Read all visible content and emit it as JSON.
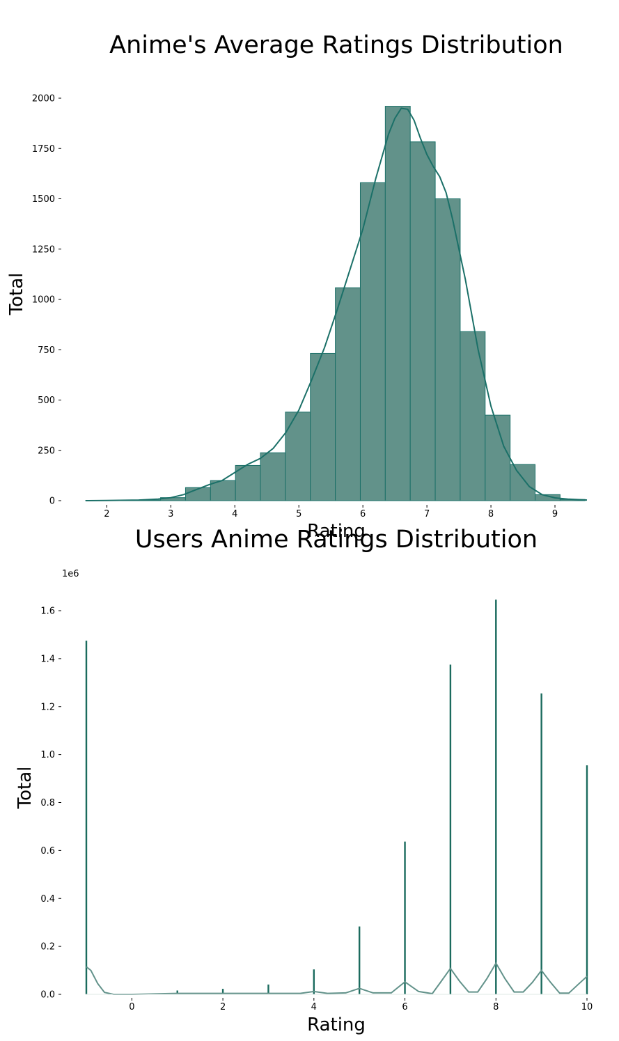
{
  "chart_data": [
    {
      "type": "bar",
      "subtype": "histogram-with-kde",
      "title": "Anime's Average Ratings Distribution",
      "xlabel": "Rating",
      "ylabel": "Total",
      "xlim": [
        1.67,
        9.5
      ],
      "ylim": [
        0,
        2050
      ],
      "xticks": [
        2,
        3,
        4,
        5,
        6,
        7,
        8,
        9
      ],
      "yticks": [
        0,
        250,
        500,
        750,
        1000,
        1250,
        1500,
        1750,
        2000
      ],
      "bar_fill": "#62928a",
      "bar_edge": "#1b7068",
      "kde_color": "#1b7068",
      "bins": [
        {
          "x0": 1.67,
          "x1": 2.06,
          "count": 1
        },
        {
          "x0": 2.06,
          "x1": 2.45,
          "count": 1
        },
        {
          "x0": 2.45,
          "x1": 2.84,
          "count": 3
        },
        {
          "x0": 2.84,
          "x1": 3.23,
          "count": 15
        },
        {
          "x0": 3.23,
          "x1": 3.62,
          "count": 65
        },
        {
          "x0": 3.62,
          "x1": 4.01,
          "count": 100
        },
        {
          "x0": 4.01,
          "x1": 4.4,
          "count": 175
        },
        {
          "x0": 4.4,
          "x1": 4.79,
          "count": 238
        },
        {
          "x0": 4.79,
          "x1": 5.18,
          "count": 440
        },
        {
          "x0": 5.18,
          "x1": 5.57,
          "count": 732
        },
        {
          "x0": 5.57,
          "x1": 5.96,
          "count": 1058
        },
        {
          "x0": 5.96,
          "x1": 6.35,
          "count": 1580
        },
        {
          "x0": 6.35,
          "x1": 6.74,
          "count": 1960
        },
        {
          "x0": 6.74,
          "x1": 7.13,
          "count": 1783
        },
        {
          "x0": 7.13,
          "x1": 7.52,
          "count": 1500
        },
        {
          "x0": 7.52,
          "x1": 7.91,
          "count": 840
        },
        {
          "x0": 7.91,
          "x1": 8.3,
          "count": 425
        },
        {
          "x0": 8.3,
          "x1": 8.69,
          "count": 180
        },
        {
          "x0": 8.69,
          "x1": 9.08,
          "count": 30
        },
        {
          "x0": 9.08,
          "x1": 9.47,
          "count": 6
        }
      ],
      "kde": {
        "x": [
          1.67,
          2.0,
          2.5,
          2.8,
          3.0,
          3.2,
          3.4,
          3.6,
          3.8,
          4.0,
          4.2,
          4.4,
          4.6,
          4.8,
          5.0,
          5.2,
          5.4,
          5.6,
          5.8,
          6.0,
          6.2,
          6.4,
          6.5,
          6.6,
          6.7,
          6.8,
          6.9,
          7.0,
          7.1,
          7.2,
          7.3,
          7.4,
          7.6,
          7.8,
          8.0,
          8.2,
          8.4,
          8.6,
          8.8,
          9.0,
          9.2,
          9.5
        ],
        "y": [
          0,
          1,
          3,
          8,
          15,
          30,
          55,
          80,
          100,
          140,
          180,
          210,
          260,
          340,
          450,
          600,
          760,
          950,
          1150,
          1350,
          1600,
          1820,
          1900,
          1950,
          1945,
          1890,
          1800,
          1720,
          1660,
          1610,
          1530,
          1400,
          1100,
          750,
          470,
          270,
          150,
          70,
          30,
          14,
          8,
          3
        ]
      }
    },
    {
      "type": "bar",
      "subtype": "histogram-with-kde",
      "title": "Users Anime Ratings Distribution",
      "xlabel": "Rating",
      "ylabel": "Total",
      "offset_text": "1e6",
      "xlim": [
        -1,
        10
      ],
      "ylim": [
        0,
        1.7
      ],
      "xticks": [
        0,
        2,
        4,
        6,
        8,
        10
      ],
      "yticks": [
        0.0,
        0.2,
        0.4,
        0.6,
        0.8,
        1.0,
        1.2,
        1.4,
        1.6
      ],
      "ytick_labels": [
        "0.0",
        "0.2",
        "0.4",
        "0.6",
        "0.8",
        "1.0",
        "1.2",
        "1.4",
        "1.6"
      ],
      "bar_color": "#1b6b5e",
      "kde_color": "#62928a",
      "categories": [
        -1,
        1,
        2,
        3,
        4,
        5,
        6,
        7,
        8,
        9,
        10
      ],
      "values": [
        1.475,
        0.016,
        0.023,
        0.041,
        0.104,
        0.283,
        0.637,
        1.375,
        1.646,
        1.255,
        0.955
      ],
      "kde": {
        "x": [
          -1.0,
          -0.9,
          -0.75,
          -0.6,
          -0.4,
          -0.2,
          0,
          1,
          2,
          3,
          3.7,
          4.0,
          4.3,
          4.7,
          5.0,
          5.3,
          5.7,
          6.0,
          6.3,
          6.6,
          6.8,
          7.0,
          7.2,
          7.4,
          7.6,
          7.8,
          8.0,
          8.2,
          8.4,
          8.6,
          8.8,
          9.0,
          9.2,
          9.4,
          9.6,
          9.8,
          10.0
        ],
        "y": [
          0.115,
          0.1,
          0.045,
          0.008,
          0.0,
          0.0,
          0.0,
          0.004,
          0.004,
          0.004,
          0.004,
          0.012,
          0.004,
          0.006,
          0.025,
          0.006,
          0.006,
          0.052,
          0.012,
          0.003,
          0.055,
          0.108,
          0.055,
          0.01,
          0.01,
          0.065,
          0.13,
          0.065,
          0.01,
          0.01,
          0.05,
          0.1,
          0.05,
          0.005,
          0.005,
          0.04,
          0.075
        ]
      }
    }
  ]
}
